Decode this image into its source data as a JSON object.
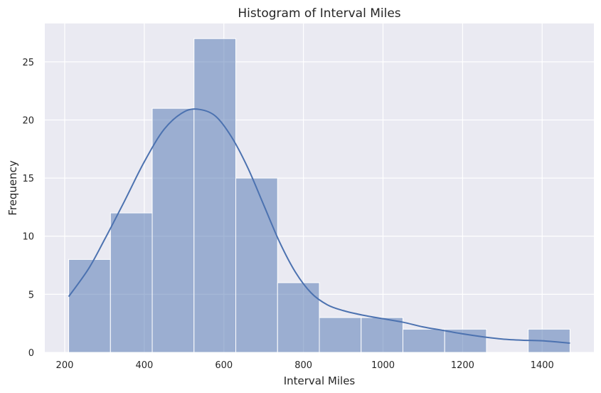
{
  "chart_data": {
    "type": "bar",
    "title": "Histogram of Interval Miles",
    "xlabel": "Interval Miles",
    "ylabel": "Frequency",
    "xlim": [
      150,
      1530
    ],
    "ylim": [
      0,
      28.3
    ],
    "xticks": [
      200,
      400,
      600,
      800,
      1000,
      1200,
      1400
    ],
    "yticks": [
      0,
      5,
      10,
      15,
      20,
      25
    ],
    "grid": true,
    "bins": [
      {
        "x0": 210,
        "x1": 315,
        "count": 8
      },
      {
        "x0": 315,
        "x1": 420,
        "count": 12
      },
      {
        "x0": 420,
        "x1": 525,
        "count": 21
      },
      {
        "x0": 525,
        "x1": 630,
        "count": 27
      },
      {
        "x0": 630,
        "x1": 735,
        "count": 15
      },
      {
        "x0": 735,
        "x1": 840,
        "count": 6
      },
      {
        "x0": 840,
        "x1": 945,
        "count": 3
      },
      {
        "x0": 945,
        "x1": 1050,
        "count": 3
      },
      {
        "x0": 1050,
        "x1": 1155,
        "count": 2
      },
      {
        "x0": 1155,
        "x1": 1260,
        "count": 2
      },
      {
        "x0": 1260,
        "x1": 1365,
        "count": 0
      },
      {
        "x0": 1365,
        "x1": 1470,
        "count": 2
      }
    ],
    "kde": {
      "x": [
        210,
        260,
        300,
        350,
        400,
        450,
        500,
        540,
        580,
        620,
        660,
        700,
        740,
        780,
        820,
        860,
        900,
        950,
        1000,
        1050,
        1100,
        1150,
        1200,
        1250,
        1300,
        1350,
        1400,
        1470
      ],
      "y": [
        4.8,
        7.2,
        9.7,
        13.0,
        16.4,
        19.2,
        20.7,
        20.9,
        20.3,
        18.5,
        15.9,
        12.7,
        9.5,
        6.9,
        5.1,
        4.1,
        3.6,
        3.2,
        2.9,
        2.6,
        2.2,
        1.9,
        1.6,
        1.35,
        1.15,
        1.05,
        1.0,
        0.8
      ]
    },
    "colors": {
      "bar_fill": "#4c72b0",
      "bar_opacity": 0.5,
      "kde_line": "#4c72b0",
      "plot_bg": "#eaeaf2",
      "grid": "#ffffff"
    }
  }
}
